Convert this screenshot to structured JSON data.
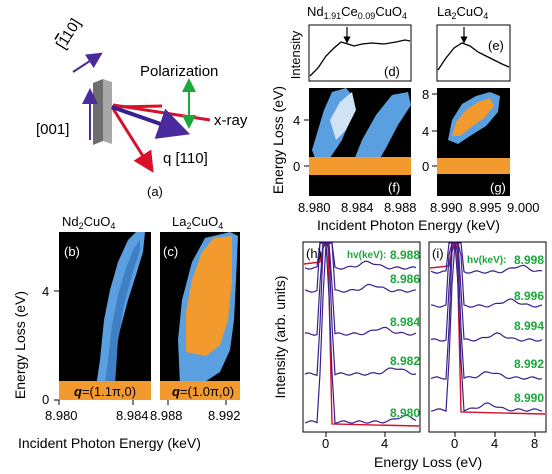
{
  "panel_a": {
    "label": "(a)",
    "dir_110bar": "[Ŷ1̄ŷ0]",
    "dir_110bar_plain": "[",
    "bar_one": "1",
    "dir_110bar_rest": "10]",
    "dir_001": "[001]",
    "polarization": "Polarization",
    "xray": "x-ray",
    "q110": "q [110]"
  },
  "panel_b": {
    "title_main": "Nd",
    "title_sub1": "2",
    "title_mid": "CuO",
    "title_sub2": "4",
    "label": "(b)",
    "q_label": "q",
    "q_value": "=(1.1π,0)"
  },
  "panel_c": {
    "title_main": "La",
    "title_sub1": "2",
    "title_mid": "CuO",
    "title_sub2": "4",
    "label": "(c)",
    "q_label": "q",
    "q_value": "=(1.0π,0)"
  },
  "bc_axes": {
    "ylabel": "Energy Loss (eV)",
    "xlabel": "Incident Photon Energy (keV)",
    "yticks": [
      "0",
      "4"
    ],
    "xticks_b": [
      "8.980",
      "8.984"
    ],
    "xticks_c": [
      "8.988",
      "8.992"
    ]
  },
  "panel_d": {
    "title": "Nd",
    "t1": "1.91",
    "t2": "Ce",
    "t3": "0.09",
    "t4": "CuO",
    "t5": "4",
    "label": "(d)"
  },
  "panel_e": {
    "title": "La",
    "t1": "2",
    "t2": "CuO",
    "t3": "4",
    "label": "(e)"
  },
  "panel_f": {
    "label": "(f)"
  },
  "panel_g": {
    "label": "(g)"
  },
  "fg_axes": {
    "intensity": "Intensity",
    "ylabel": "Energy Loss (eV)",
    "xlabel": "Incident Photon Energy (keV)",
    "yticks_f": [
      "0",
      "4"
    ],
    "yticks_g": [
      "0",
      "4",
      "8"
    ],
    "xticks_f": [
      "8.980",
      "8.984",
      "8.988"
    ],
    "xticks_g": [
      "8.990",
      "8.995",
      "9.000"
    ]
  },
  "panel_h": {
    "label": "(h)",
    "hv": "hv(keV):",
    "energies": [
      "8.988",
      "8.986",
      "8.984",
      "8.982",
      "8.980"
    ]
  },
  "panel_i": {
    "label": "(i)",
    "hv": "hv(keV):",
    "energies": [
      "8.998",
      "8.996",
      "8.994",
      "8.992",
      "8.990"
    ]
  },
  "hi_axes": {
    "ylabel": "Intensity (arb. units)",
    "xlabel": "Energy Loss (eV)",
    "xticks_h": [
      "0",
      "4"
    ],
    "xticks_i": [
      "0",
      "4",
      "8"
    ]
  },
  "colors": {
    "dark_blue": "#3b1f8c",
    "red": "#d8102a",
    "green": "#1aa83a",
    "orange": "#f29a2e",
    "light_blue": "#5aa0e0",
    "black": "#000000"
  }
}
